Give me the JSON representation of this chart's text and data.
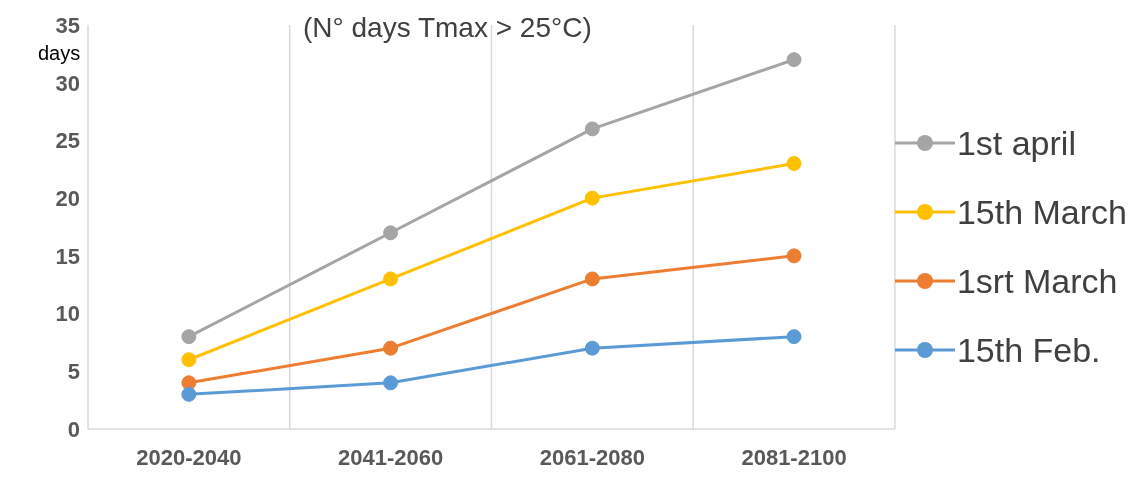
{
  "chart_data": {
    "type": "line",
    "title": "(N° days Tmax > 25°C)",
    "ylabel": "days",
    "categories": [
      "2020-2040",
      "2041-2060",
      "2061-2080",
      "2081-2100"
    ],
    "series": [
      {
        "name": "1st april",
        "color": "#a5a5a5",
        "values": [
          8,
          17,
          26,
          32
        ]
      },
      {
        "name": "15th March",
        "color": "#ffc000",
        "values": [
          6,
          13,
          20,
          23
        ]
      },
      {
        "name": "1srt March",
        "color": "#ed7d31",
        "values": [
          4,
          7,
          13,
          15
        ]
      },
      {
        "name": "15th Feb.",
        "color": "#5b9bd5",
        "values": [
          3,
          4,
          7,
          8
        ]
      }
    ],
    "ylim": [
      0,
      35
    ],
    "yticks": [
      0,
      5,
      10,
      15,
      20,
      25,
      30,
      35
    ],
    "grid": "x",
    "legend": "right",
    "marker": "circle",
    "line_style": "solid"
  }
}
